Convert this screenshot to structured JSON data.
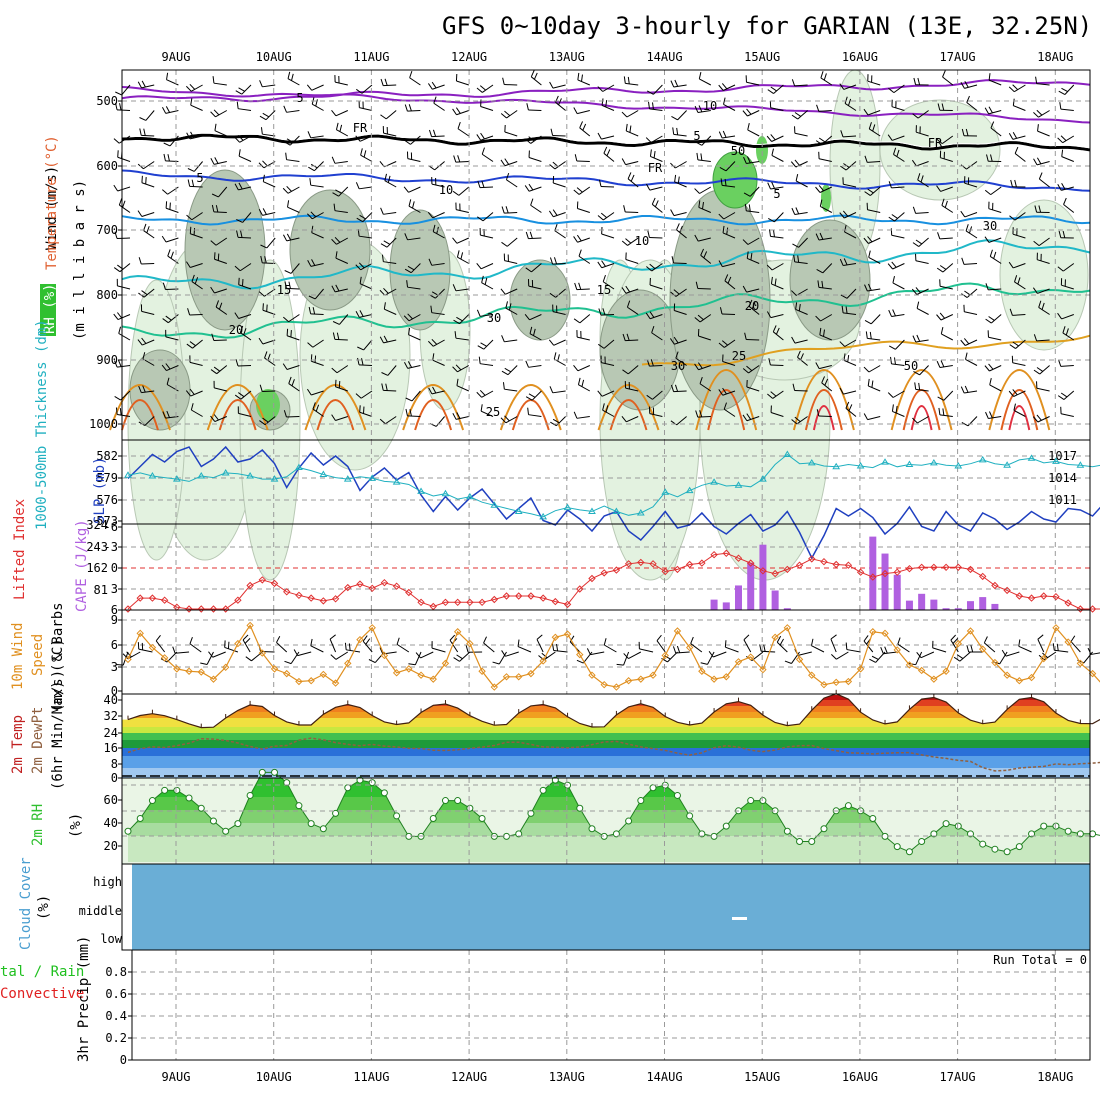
{
  "title": "GFS 0~10day 3-hourly for GARIAN (13E, 32.25N)",
  "date_labels": [
    "9AUG",
    "10AUG",
    "11AUG",
    "12AUG",
    "13AUG",
    "14AUG",
    "15AUG",
    "16AUG",
    "17AUG",
    "18AUG"
  ],
  "colors": {
    "wind": "#000000",
    "temperature": "#c03030",
    "rh": "#30c030",
    "thickness": "#20b0c0",
    "slp": "#2040c0",
    "lifted": "#e03030",
    "cape": "#b060e0",
    "wind10": "#e09020",
    "temp2m": "#c02020",
    "dewpt": "#906040",
    "rh2m": "#30c030",
    "cloud": "#6aaed6",
    "precip_total": "#20c020",
    "precip_conv": "#e02020"
  },
  "panels": {
    "upper_air": {
      "axis_label_parts": [
        "Wind (m/s)",
        "Temperature (°C)",
        "(m i l l i b a r s)"
      ],
      "rh_label": "RH (%)",
      "yticks": [
        "500",
        "600",
        "700",
        "800",
        "900",
        "1000"
      ],
      "contour_labels": [
        "5",
        "10",
        "5",
        "FR",
        "FR",
        "FR",
        "5",
        "5",
        "10",
        "15",
        "15",
        "20",
        "20",
        "25",
        "25",
        "30",
        "50",
        "30",
        "30",
        "10",
        "50"
      ]
    },
    "thickness_slp": {
      "label_thickness": "1000-500mb Thickness (dm)",
      "label_slp": "SLP (mb)",
      "yticks_left": [
        "582",
        "579",
        "576",
        "573"
      ],
      "yticks_right": [
        "1017",
        "1014",
        "1011"
      ]
    },
    "li_cape": {
      "label_li": "Lifted Index",
      "label_cape": "CAPE (J/kg)",
      "yticks_left": [
        "-6",
        "-3",
        "0",
        "3",
        "6"
      ],
      "yticks_right": [
        "324",
        "243",
        "162",
        "81"
      ]
    },
    "wind10": {
      "label_a": "10m Wind",
      "label_b": "Speed",
      "label_c": "(m/s) & Barbs",
      "yticks": [
        "9",
        "6",
        "3",
        "0"
      ]
    },
    "temp2m": {
      "label_a": "2m Temp",
      "label_b": "2m DewPt",
      "label_c": "(6hr Min/Max) (°C)",
      "yticks": [
        "40",
        "32",
        "24",
        "16",
        "8",
        "0"
      ]
    },
    "rh2m": {
      "label_a": "2m RH",
      "label_b": "(%)",
      "yticks": [
        "60",
        "40",
        "20"
      ]
    },
    "cloud": {
      "label_a": "Cloud Cover",
      "label_b": "(%)",
      "levels": [
        "high",
        "middle",
        "low"
      ]
    },
    "precip": {
      "label_a": "tal / Rain",
      "label_b": "Convective",
      "label_c": "3hr Precip (mm)",
      "run_total": "Run Total = 0",
      "yticks": [
        "0.8",
        "0.6",
        "0.4",
        "0.2",
        "0"
      ]
    }
  },
  "chart_data": {
    "type": "line",
    "x_start": "8AUG 12Z",
    "x_step_hours": 3,
    "day_ticks": [
      "9AUG",
      "10AUG",
      "11AUG",
      "12AUG",
      "13AUG",
      "14AUG",
      "15AUG",
      "16AUG",
      "17AUG",
      "18AUG"
    ],
    "slp_mb": [
      1015.5,
      1016.3,
      1017.1,
      1016.6,
      1017.3,
      1017.6,
      1016.3,
      1016.8,
      1017.6,
      1016.6,
      1016.8,
      1017.4,
      1016.5,
      1014.9,
      1016.2,
      1017.2,
      1016.4,
      1017.0,
      1016.3,
      1014.7,
      1015.6,
      1016.2,
      1015.4,
      1015.9,
      1014.4,
      1013.3,
      1014.3,
      1013.4,
      1014.2,
      1014.8,
      1013.8,
      1012.8,
      1013.5,
      1014.2,
      1012.7,
      1012.4,
      1013.4,
      1012.8,
      1012.0,
      1013.0,
      1013.3,
      1012.0,
      1011.4,
      1012.3,
      1013.3,
      1012.2,
      1012.4,
      1013.2,
      1012.3,
      1011.8,
      1012.5,
      1013.1,
      1012.0,
      1012.4,
      1013.3,
      1011.9,
      1010.2,
      1011.7,
      1013.5,
      1013.0,
      1013.5,
      1012.9,
      1011.8,
      1012.5,
      1013.6,
      1012.3,
      1012.0,
      1013.3,
      1012.4,
      1012.0,
      1013.2,
      1012.8,
      1012.1,
      1012.6,
      1013.3,
      1012.8,
      1012.6,
      1013.5,
      1013.4,
      1013.0,
      1013.9
    ],
    "thickness_dm": [
      579.5,
      579.8,
      579.4,
      579.2,
      579.0,
      578.7,
      579.4,
      579.2,
      579.8,
      579.7,
      579.4,
      579.0,
      579.0,
      579.3,
      580.5,
      580.1,
      579.6,
      579.2,
      579.0,
      579.3,
      579.1,
      578.7,
      578.6,
      578.3,
      577.4,
      576.8,
      577.1,
      576.4,
      576.7,
      576.0,
      575.6,
      575.2,
      574.8,
      574.5,
      574.1,
      574.9,
      575.3,
      575.0,
      574.8,
      575.5,
      574.8,
      574.3,
      574.6,
      575.4,
      577.3,
      576.7,
      577.5,
      578.2,
      578.6,
      578.1,
      578.2,
      578.0,
      579.0,
      580.9,
      582.2,
      581.0,
      581.1,
      580.7,
      580.6,
      580.9,
      580.7,
      580.5,
      581.2,
      580.6,
      580.9,
      580.8,
      581.1,
      580.8,
      580.7,
      581.0,
      581.5,
      581.0,
      580.8,
      581.5,
      581.7,
      581.1,
      581.3,
      580.9,
      580.8,
      580.6,
      580.9
    ],
    "lifted_index": [
      6.3,
      4.3,
      4.3,
      4.6,
      5.6,
      6.3,
      6.8,
      6.3,
      6.4,
      4.6,
      2.5,
      1.7,
      2.2,
      3.4,
      3.9,
      4.3,
      4.7,
      4.4,
      2.8,
      2.3,
      2.9,
      2.1,
      2.6,
      3.5,
      4.9,
      5.5,
      4.9,
      4.9,
      4.9,
      4.9,
      4.5,
      4.0,
      4.0,
      4.0,
      4.3,
      4.8,
      5.2,
      3.0,
      1.5,
      0.7,
      0.3,
      -0.6,
      -0.8,
      -0.6,
      0.5,
      0.2,
      -0.5,
      -0.7,
      -1.9,
      -2.1,
      -1.4,
      -0.7,
      0.4,
      0.8,
      0.2,
      -0.4,
      -1.3,
      -0.9,
      -0.5,
      -0.4,
      0.6,
      1.3,
      0.8,
      0.6,
      0.1,
      -0.1,
      -0.1,
      -0.1,
      -0.1,
      0.2,
      1.2,
      2.5,
      3.2,
      4.0,
      4.3,
      4.0,
      4.1,
      5.0,
      6.6,
      7.2,
      7.4
    ],
    "cape_jkg": [
      0,
      0,
      0,
      0,
      0,
      0,
      0,
      0,
      0,
      0,
      0,
      0,
      0,
      0,
      0,
      0,
      0,
      0,
      0,
      0,
      0,
      0,
      0,
      0,
      0,
      0,
      0,
      0,
      0,
      0,
      0,
      0,
      0,
      0,
      0,
      0,
      0,
      0,
      0,
      0,
      0,
      0,
      0,
      0,
      0,
      0,
      0,
      0,
      41,
      30,
      97,
      187,
      258,
      77,
      7,
      0,
      0,
      0,
      0,
      0,
      0,
      290,
      223,
      139,
      37,
      64,
      41,
      7,
      7,
      35,
      51,
      24,
      0,
      0,
      0,
      0,
      0,
      0,
      0,
      0,
      0
    ],
    "wind10_ms": [
      4.0,
      7.3,
      5.5,
      4.2,
      2.8,
      2.5,
      2.4,
      1.5,
      3.0,
      6.0,
      8.3,
      4.8,
      2.8,
      2.2,
      1.2,
      1.3,
      2.1,
      1.0,
      3.5,
      6.5,
      8.0,
      4.5,
      2.3,
      2.8,
      2.0,
      1.5,
      3.5,
      7.5,
      6.0,
      2.5,
      0.5,
      1.8,
      1.8,
      2.2,
      3.8,
      6.8,
      7.2,
      4.6,
      2.0,
      0.8,
      0.5,
      1.3,
      1.5,
      2.0,
      4.5,
      7.6,
      5.5,
      2.5,
      1.5,
      1.8,
      3.7,
      4.3,
      2.7,
      6.8,
      8.0,
      4.0,
      2.0,
      0.8,
      1.1,
      1.2,
      2.8,
      7.5,
      7.3,
      5.2,
      3.3,
      2.6,
      1.5,
      2.5,
      6.0,
      7.6,
      5.3,
      3.6,
      2.0,
      1.3,
      1.7,
      4.1,
      8.0,
      6.2,
      3.5,
      2.2,
      0.5
    ],
    "temp2m_c": [
      27.5,
      29.5,
      30.4,
      29.4,
      27.5,
      25.4,
      23.6,
      23.8,
      28.3,
      32.0,
      34.7,
      33.9,
      29.5,
      26.4,
      24.9,
      24.9,
      30.1,
      33.5,
      34.9,
      33.4,
      29.5,
      26.4,
      25.1,
      25.9,
      31.0,
      34.5,
      35.1,
      33.1,
      29.4,
      26.7,
      24.8,
      25.1,
      30.7,
      34.2,
      34.9,
      33.2,
      28.9,
      25.6,
      23.9,
      24.0,
      29.8,
      33.7,
      35.2,
      33.5,
      29.0,
      26.2,
      24.9,
      25.8,
      31.2,
      35.2,
      36.3,
      34.5,
      29.7,
      26.1,
      24.6,
      25.3,
      32.1,
      38.0,
      40.1,
      37.5,
      31.1,
      27.3,
      25.4,
      26.4,
      32.5,
      37.5,
      38.3,
      36.1,
      30.8,
      27.2,
      25.5,
      26.3,
      32.5,
      37.4,
      38.3,
      36.2,
      30.7,
      27.1,
      25.6,
      25.5,
      28.9
    ],
    "dewpt2m_c": [
      11.5,
      13.4,
      14.2,
      13.9,
      14.8,
      16.0,
      18.2,
      18.0,
      17.3,
      16.1,
      14.4,
      13.1,
      14.6,
      14.9,
      17.5,
      18.5,
      17.6,
      16.3,
      15.4,
      14.8,
      15.4,
      14.6,
      14.2,
      13.5,
      13.4,
      12.6,
      12.5,
      12.8,
      13.5,
      14.1,
      14.9,
      16.5,
      16.5,
      15.4,
      14.2,
      14.0,
      13.8,
      14.1,
      15.3,
      16.6,
      16.9,
      15.5,
      14.2,
      13.3,
      12.5,
      11.1,
      10.2,
      11.3,
      13.8,
      14.8,
      14.1,
      12.6,
      11.9,
      12.7,
      14.2,
      14.8,
      14.9,
      13.3,
      12.4,
      11.3,
      11.1,
      10.8,
      11.1,
      11.3,
      11.4,
      10.3,
      9.3,
      8.6,
      7.6,
      7.1,
      4.1,
      2.5,
      2.8,
      3.9,
      4.3,
      4.7,
      5.9,
      5.5,
      6.0,
      6.3,
      6.8
    ],
    "rh2m_pct": [
      24,
      34,
      48,
      56,
      56,
      50,
      42,
      32,
      24,
      30,
      52,
      70,
      70,
      62,
      44,
      30,
      26,
      38,
      58,
      64,
      62,
      54,
      36,
      20,
      20,
      34,
      48,
      48,
      42,
      34,
      20,
      20,
      22,
      38,
      56,
      64,
      60,
      42,
      26,
      20,
      22,
      32,
      48,
      58,
      60,
      52,
      36,
      22,
      20,
      28,
      40,
      48,
      48,
      40,
      24,
      16,
      16,
      26,
      40,
      44,
      40,
      34,
      20,
      12,
      8,
      16,
      22,
      30,
      28,
      22,
      14,
      10,
      8,
      12,
      22,
      28,
      28,
      24,
      22,
      22,
      20
    ],
    "cloud_cover_pct": {
      "high": 0,
      "middle": 0,
      "low": 0
    },
    "precip_mm": {
      "total": 0,
      "rain": 0,
      "convective": 0
    },
    "upper_air": {
      "ylabel": "(m i l l i b a r s)",
      "ylim_mb": [
        450,
        1000
      ],
      "isotherm_levels_c": [
        -10,
        -5,
        0,
        5,
        10,
        15,
        20,
        25,
        30,
        50
      ],
      "rh_shading_levels_pct": [
        30,
        50,
        70,
        90
      ]
    }
  }
}
